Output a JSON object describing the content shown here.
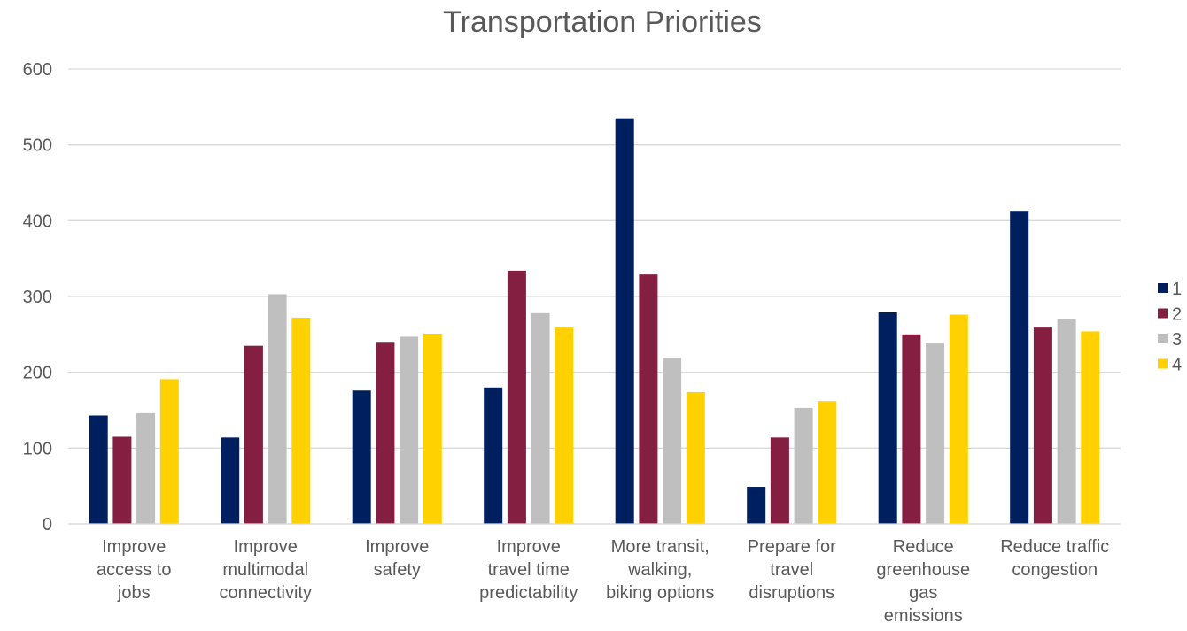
{
  "chart_data": {
    "type": "bar",
    "title": "Transportation Priorities",
    "xlabel": "",
    "ylabel": "",
    "ylim": [
      0,
      600
    ],
    "yticks": [
      0,
      100,
      200,
      300,
      400,
      500,
      600
    ],
    "grid": true,
    "legend_position": "right",
    "categories": [
      [
        "Improve",
        "access to",
        "jobs"
      ],
      [
        "Improve",
        "multimodal",
        "connectivity"
      ],
      [
        "Improve",
        "safety"
      ],
      [
        "Improve",
        "travel time",
        "predictability"
      ],
      [
        "More transit,",
        "walking,",
        "biking options"
      ],
      [
        "Prepare for",
        "travel",
        "disruptions"
      ],
      [
        "Reduce",
        "greenhouse",
        "gas",
        "emissions"
      ],
      [
        "Reduce traffic",
        "congestion"
      ]
    ],
    "series": [
      {
        "name": "1",
        "color": "#001F5F",
        "values": [
          143,
          114,
          176,
          180,
          535,
          49,
          279,
          413
        ]
      },
      {
        "name": "2",
        "color": "#841F41",
        "values": [
          115,
          235,
          239,
          334,
          329,
          114,
          250,
          259
        ]
      },
      {
        "name": "3",
        "color": "#BFBFBF",
        "values": [
          146,
          303,
          247,
          278,
          219,
          153,
          238,
          270
        ]
      },
      {
        "name": "4",
        "color": "#FFD100",
        "values": [
          191,
          272,
          251,
          259,
          174,
          162,
          276,
          254
        ]
      }
    ]
  }
}
